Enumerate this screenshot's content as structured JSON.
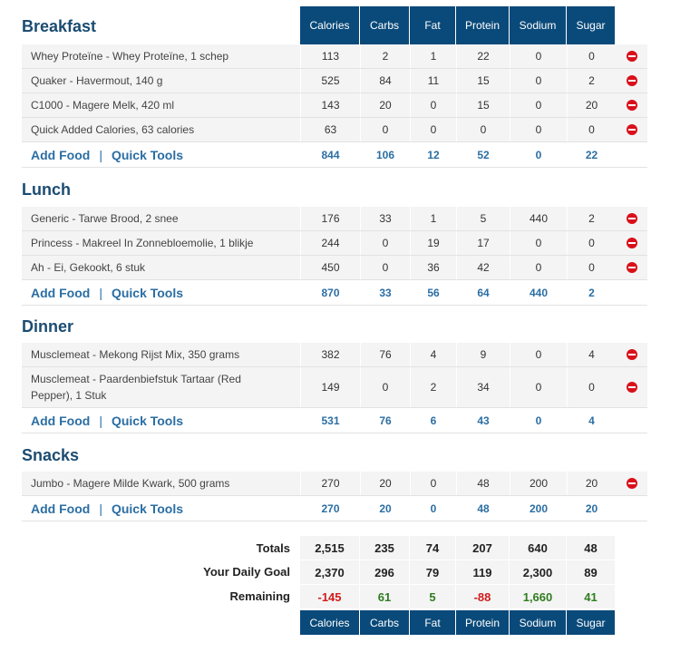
{
  "columns": [
    "Calories",
    "Carbs",
    "Fat",
    "Protein",
    "Sodium",
    "Sugar"
  ],
  "meals": [
    {
      "title": "Breakfast",
      "foods": [
        {
          "name": "Whey Proteïne - Whey Proteïne, 1 schep",
          "v": [
            "113",
            "2",
            "1",
            "22",
            "0",
            "0"
          ]
        },
        {
          "name": "Quaker - Havermout, 140 g",
          "v": [
            "525",
            "84",
            "11",
            "15",
            "0",
            "2"
          ]
        },
        {
          "name": "C1000 - Magere Melk, 420 ml",
          "v": [
            "143",
            "20",
            "0",
            "15",
            "0",
            "20"
          ]
        },
        {
          "name": "Quick Added Calories, 63 calories",
          "v": [
            "63",
            "0",
            "0",
            "0",
            "0",
            "0"
          ]
        }
      ],
      "totals": [
        "844",
        "106",
        "12",
        "52",
        "0",
        "22"
      ]
    },
    {
      "title": "Lunch",
      "foods": [
        {
          "name": "Generic - Tarwe Brood, 2 snee",
          "v": [
            "176",
            "33",
            "1",
            "5",
            "440",
            "2"
          ]
        },
        {
          "name": "Princess - Makreel In Zonnebloemolie, 1 blikje",
          "v": [
            "244",
            "0",
            "19",
            "17",
            "0",
            "0"
          ]
        },
        {
          "name": "Ah - Ei, Gekookt, 6 stuk",
          "v": [
            "450",
            "0",
            "36",
            "42",
            "0",
            "0"
          ]
        }
      ],
      "totals": [
        "870",
        "33",
        "56",
        "64",
        "440",
        "2"
      ]
    },
    {
      "title": "Dinner",
      "foods": [
        {
          "name": "Musclemeat - Mekong Rijst Mix, 350 grams",
          "v": [
            "382",
            "76",
            "4",
            "9",
            "0",
            "4"
          ]
        },
        {
          "name": "Musclemeat - Paardenbiefstuk Tartaar (Red Pepper), 1 Stuk",
          "v": [
            "149",
            "0",
            "2",
            "34",
            "0",
            "0"
          ]
        }
      ],
      "totals": [
        "531",
        "76",
        "6",
        "43",
        "0",
        "4"
      ]
    },
    {
      "title": "Snacks",
      "foods": [
        {
          "name": "Jumbo - Magere Milde Kwark, 500 grams",
          "v": [
            "270",
            "20",
            "0",
            "48",
            "200",
            "20"
          ]
        }
      ],
      "totals": [
        "270",
        "20",
        "0",
        "48",
        "200",
        "20"
      ]
    }
  ],
  "links": {
    "add_food": "Add Food",
    "quick_tools": "Quick Tools"
  },
  "summary": {
    "totals_label": "Totals",
    "totals": [
      "2,515",
      "235",
      "74",
      "207",
      "640",
      "48"
    ],
    "goal_label": "Your Daily Goal",
    "goal": [
      "2,370",
      "296",
      "79",
      "119",
      "2,300",
      "89"
    ],
    "remaining_label": "Remaining",
    "remaining": [
      "-145",
      "61",
      "5",
      "-88",
      "1,660",
      "41"
    ]
  },
  "colors": {
    "header_bg": "#0a4a7a",
    "link": "#2b6ea3",
    "negative": "#d21a1a",
    "positive": "#2f7d1f",
    "delete": "#d9101b"
  }
}
